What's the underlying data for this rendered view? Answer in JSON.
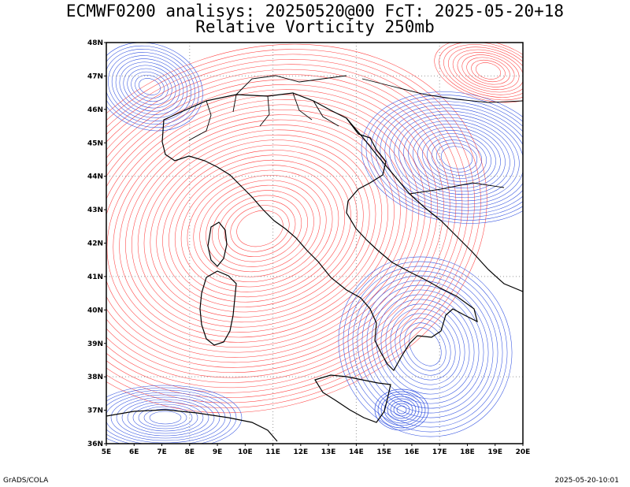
{
  "title": {
    "line1": "ECMWF0200 analisys: 20250520@00 FcT: 2025-05-20+18",
    "line2": "Relative Vorticity 250mb"
  },
  "map": {
    "lat_labels": [
      "48N",
      "47N",
      "46N",
      "45N",
      "44N",
      "43N",
      "42N",
      "41N",
      "40N",
      "39N",
      "38N",
      "37N",
      "36N"
    ],
    "lon_labels": [
      "5E",
      "6E",
      "7E",
      "8E",
      "9E",
      "10E",
      "11E",
      "12E",
      "13E",
      "14E",
      "15E",
      "16E",
      "17E",
      "18E",
      "19E",
      "20E"
    ],
    "lon_range": [
      5,
      20
    ],
    "lat_range": [
      36,
      48
    ],
    "colors": {
      "positive_vorticity": "#ff4040",
      "negative_vorticity": "#3050e0",
      "coastline": "#000000",
      "grid": "#999999"
    }
  },
  "footer": {
    "left": "GrADS/COLA",
    "right": "2025-05-20-10:01"
  }
}
